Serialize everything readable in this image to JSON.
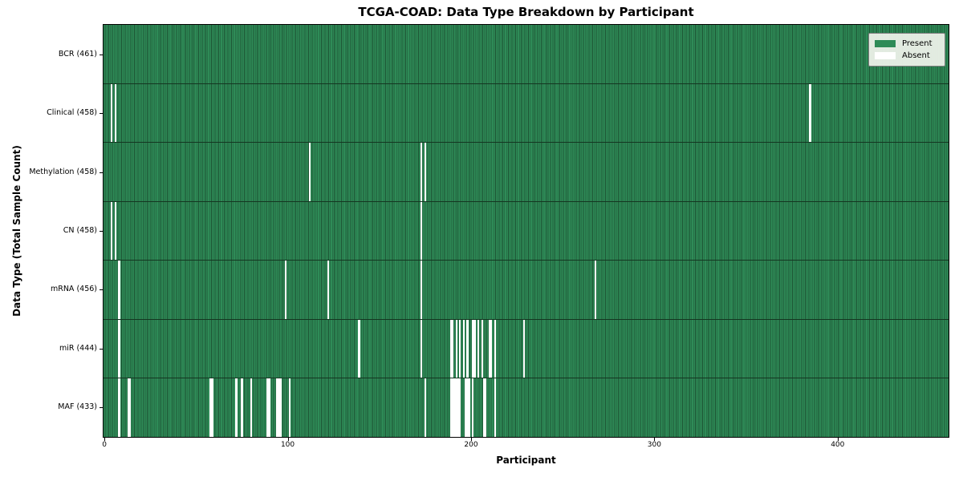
{
  "figure": {
    "title": "TCGA-COAD: Data Type Breakdown by Participant",
    "xlabel": "Participant",
    "ylabel": "Data Type (Total Sample Count)"
  },
  "legend": {
    "items": [
      {
        "label": "Present",
        "color": "#2e8b57"
      },
      {
        "label": "Absent",
        "color": "#ffffff"
      }
    ]
  },
  "colors": {
    "present_fill": "#2e8b57",
    "bar_edge": "#1d5434",
    "absent_fill": "#ffffff",
    "axis_spine": "#000000",
    "legend_background": "#ecf1e9"
  },
  "chart_data": {
    "type": "heatmap",
    "title": "TCGA-COAD: Data Type Breakdown by Participant",
    "xlabel": "Participant",
    "ylabel": "Data Type (Total Sample Count)",
    "legend_position": "upper right",
    "n_participants": 461,
    "x_axis_range": [
      -0.5,
      460.5
    ],
    "x_ticks": [
      0,
      100,
      200,
      300,
      400
    ],
    "rows": [
      {
        "name": "BCR",
        "label": "BCR (461)",
        "total": 461,
        "absent_participants": []
      },
      {
        "name": "Clinical",
        "label": "Clinical (458)",
        "total": 458,
        "absent_participants": [
          4,
          6,
          385
        ]
      },
      {
        "name": "Methylation",
        "label": "Methylation (458)",
        "total": 458,
        "absent_participants": [
          112,
          173,
          175
        ]
      },
      {
        "name": "CN",
        "label": "CN (458)",
        "total": 458,
        "absent_participants": [
          4,
          6,
          173
        ]
      },
      {
        "name": "mRNA",
        "label": "mRNA (456)",
        "total": 456,
        "absent_participants": [
          8,
          99,
          122,
          173,
          268
        ]
      },
      {
        "name": "miR",
        "label": "miR (444)",
        "total": 444,
        "absent_participants": [
          8,
          139,
          173,
          189,
          190,
          192,
          194,
          196,
          198,
          201,
          202,
          204,
          206,
          210,
          211,
          213,
          229
        ]
      },
      {
        "name": "MAF",
        "label": "MAF (433)",
        "total": 433,
        "absent_participants": [
          8,
          13,
          14,
          58,
          59,
          72,
          75,
          80,
          89,
          90,
          94,
          95,
          96,
          101,
          175,
          189,
          190,
          191,
          192,
          193,
          194,
          197,
          198,
          199,
          201,
          207,
          208,
          213
        ]
      }
    ]
  }
}
